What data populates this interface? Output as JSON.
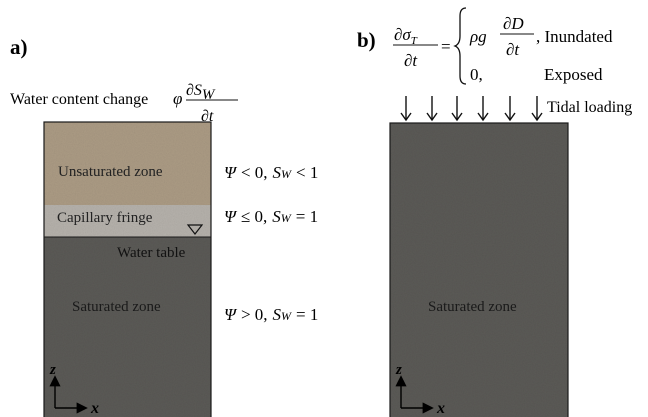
{
  "panel_a": {
    "label": "a)",
    "header": {
      "text": "Water content change",
      "symbol": "φ",
      "numerator": "∂S",
      "numerator_sub": "W",
      "denominator": "∂t"
    },
    "zones": {
      "unsaturated": "Unsaturated zone",
      "capillary": "Capillary fringe",
      "water_table": "Water table",
      "saturated": "Saturated zone"
    },
    "conditions": [
      {
        "psi": "Ψ",
        "rel": "< 0,",
        "s": "S",
        "sub": "W",
        "cmp": "< 1"
      },
      {
        "psi": "Ψ",
        "rel": "≤ 0,",
        "s": "S",
        "sub": "W",
        "cmp": "= 1"
      },
      {
        "psi": "Ψ",
        "rel": "> 0,",
        "s": "S",
        "sub": "W",
        "cmp": "= 1"
      }
    ],
    "axis_z": "z",
    "axis_x": "x",
    "colors": {
      "unsaturated": "#ab9b84",
      "capillary": "#b5b1ab",
      "saturated": "#5b5a56"
    }
  },
  "panel_b": {
    "label": "b)",
    "equation": {
      "lhs_num": "∂σ",
      "lhs_num_sub": "T",
      "lhs_den": "∂t",
      "eq": "=",
      "case1_coef": "ρg",
      "case1_num": "∂D",
      "case1_den": "∂t",
      "case1_label": ", Inundated",
      "case2_val": "0,",
      "case2_label": "Exposed"
    },
    "tidal": "Tidal loading",
    "zone": "Saturated zone",
    "axis_z": "z",
    "axis_x": "x"
  }
}
